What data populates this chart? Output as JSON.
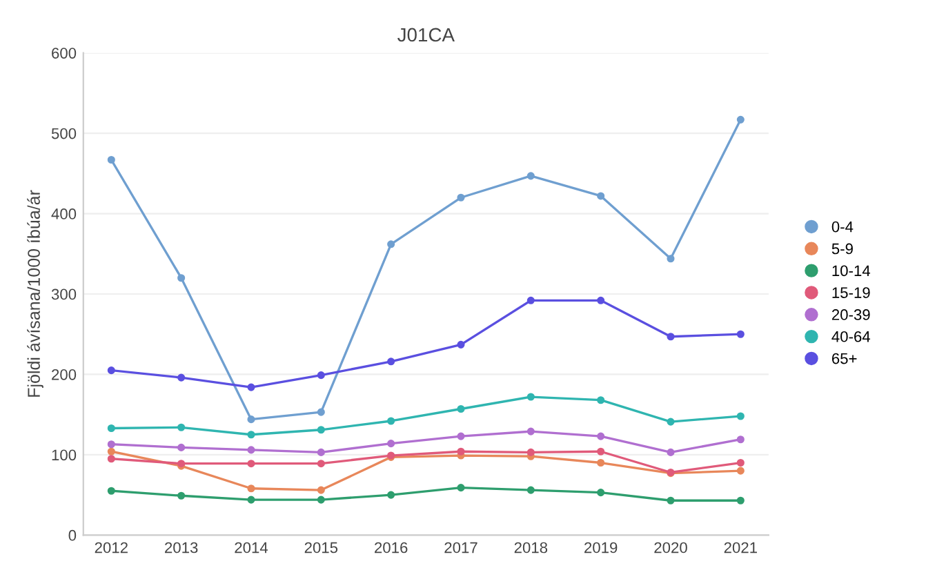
{
  "chart_data": {
    "type": "line",
    "title": "J01CA",
    "ylabel": "Fjöldi ávísana/1000 íbúa/ár",
    "categories": [
      "2012",
      "2013",
      "2014",
      "2015",
      "2016",
      "2017",
      "2018",
      "2019",
      "2020",
      "2021"
    ],
    "series": [
      {
        "name": "0-4",
        "color": "#6f9fd0",
        "values": [
          467,
          320,
          144,
          153,
          362,
          420,
          447,
          422,
          344,
          517
        ]
      },
      {
        "name": "5-9",
        "color": "#e8875a",
        "values": [
          104,
          86,
          58,
          56,
          97,
          99,
          98,
          90,
          77,
          80
        ]
      },
      {
        "name": "10-14",
        "color": "#2e9e6e",
        "values": [
          55,
          49,
          44,
          44,
          50,
          59,
          56,
          53,
          43,
          43
        ]
      },
      {
        "name": "15-19",
        "color": "#e05a7a",
        "values": [
          95,
          89,
          89,
          89,
          99,
          104,
          103,
          104,
          78,
          90
        ]
      },
      {
        "name": "20-39",
        "color": "#b06fd0",
        "values": [
          113,
          109,
          106,
          103,
          114,
          123,
          129,
          123,
          103,
          119
        ]
      },
      {
        "name": "40-64",
        "color": "#2fb5b0",
        "values": [
          133,
          134,
          125,
          131,
          142,
          157,
          172,
          168,
          141,
          148
        ]
      },
      {
        "name": "65+",
        "color": "#5a4fe0",
        "values": [
          205,
          196,
          184,
          199,
          216,
          237,
          292,
          292,
          247,
          250
        ]
      }
    ],
    "ylim": [
      0,
      600
    ],
    "yticks": [
      0,
      100,
      200,
      300,
      400,
      500,
      600
    ],
    "grid": "y",
    "legend": "right",
    "marker": "circle"
  }
}
